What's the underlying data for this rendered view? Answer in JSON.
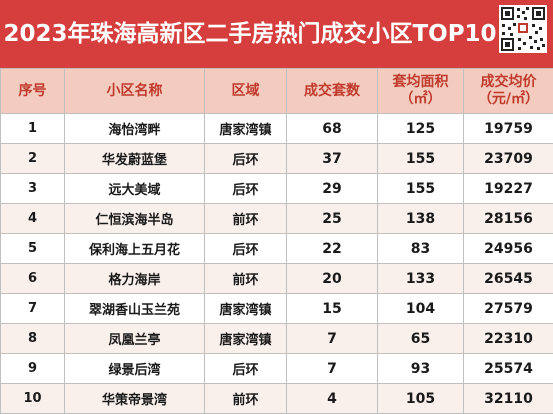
{
  "title": "2023年珠海高新区二手房热门成交小区TOP10",
  "colors": {
    "title_bg": "#d63d3d",
    "header_bg": "#f3ccbf",
    "header_text": "#c0392b",
    "row_alt": "#f9f0ec",
    "border": "#bfbfbf"
  },
  "qr_icon": "qr-code-icon",
  "table": {
    "headers": [
      {
        "line1": "序号",
        "line2": ""
      },
      {
        "line1": "小区名称",
        "line2": ""
      },
      {
        "line1": "区域",
        "line2": ""
      },
      {
        "line1": "成交套数",
        "line2": ""
      },
      {
        "line1": "套均面积",
        "line2": "（㎡）"
      },
      {
        "line1": "成交均价",
        "line2": "（元/㎡）"
      }
    ],
    "rows": [
      [
        "1",
        "海怡湾畔",
        "唐家湾镇",
        "68",
        "125",
        "19759"
      ],
      [
        "2",
        "华发蔚蓝堡",
        "后环",
        "37",
        "155",
        "23709"
      ],
      [
        "3",
        "远大美域",
        "后环",
        "29",
        "155",
        "19227"
      ],
      [
        "4",
        "仁恒滨海半岛",
        "前环",
        "25",
        "138",
        "28156"
      ],
      [
        "5",
        "保利海上五月花",
        "后环",
        "22",
        "83",
        "24956"
      ],
      [
        "6",
        "格力海岸",
        "前环",
        "20",
        "133",
        "26545"
      ],
      [
        "7",
        "翠湖香山玉兰苑",
        "唐家湾镇",
        "15",
        "104",
        "27579"
      ],
      [
        "8",
        "凤凰兰亭",
        "唐家湾镇",
        "7",
        "65",
        "22310"
      ],
      [
        "9",
        "绿景后湾",
        "后环",
        "7",
        "93",
        "25574"
      ],
      [
        "10",
        "华策帝景湾",
        "前环",
        "4",
        "105",
        "32110"
      ]
    ]
  }
}
